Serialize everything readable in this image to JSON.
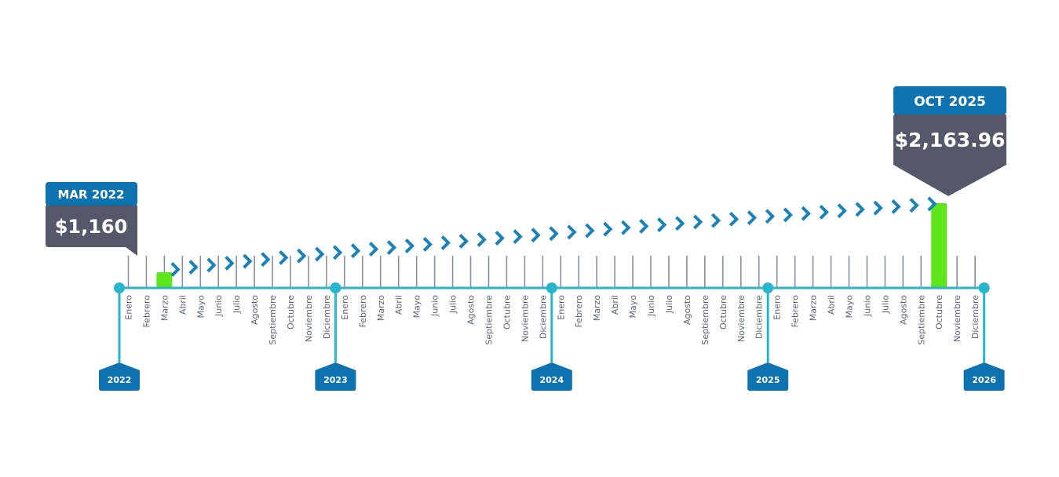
{
  "chart_data": {
    "type": "bar",
    "months": [
      "Enero",
      "Febrero",
      "Marzo",
      "Abril",
      "Mayo",
      "Junio",
      "Julio",
      "Agosto",
      "Septiembre",
      "Octubre",
      "Noviembre",
      "Diciembre"
    ],
    "years": [
      "2022",
      "2023",
      "2024",
      "2025",
      "2026"
    ],
    "series": [
      {
        "x": [
          "Marzo 2022",
          "Octubre 2025"
        ],
        "values": [
          1160,
          2163.96
        ]
      }
    ],
    "callouts": [
      {
        "date": "MAR 2022",
        "value": "$1,160"
      },
      {
        "date": "OCT 2025",
        "value": "$2,163.96"
      }
    ]
  },
  "colors": {
    "axis": "#29b6cc",
    "tick": "#8a90a3",
    "arrow": "#1a82b8",
    "bar": "#5fe61a",
    "year_tag": "#0f72b0",
    "callout_date": "#0f72b0",
    "callout_value": "#545869"
  }
}
